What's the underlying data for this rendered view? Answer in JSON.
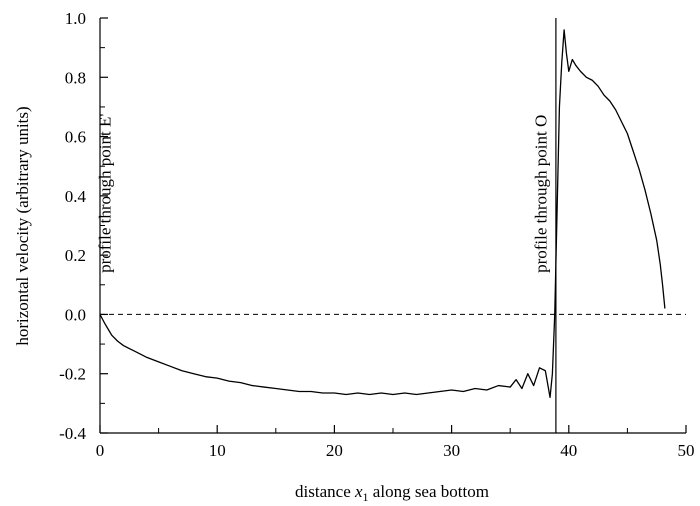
{
  "chart_data": {
    "type": "line",
    "title": "",
    "xlabel": {
      "prefix": "distance ",
      "var": "x",
      "sub": "1",
      "suffix": " along sea bottom"
    },
    "ylabel": "horizontal velocity (arbitrary units)",
    "xlim": [
      0,
      50
    ],
    "ylim": [
      -0.4,
      1.0
    ],
    "xticks": [
      0,
      10,
      20,
      30,
      40,
      50
    ],
    "xtick_labels": [
      "0",
      "10",
      "20",
      "30",
      "40",
      "50"
    ],
    "yticks": [
      -0.4,
      -0.2,
      0.0,
      0.2,
      0.4,
      0.6,
      0.8,
      1.0
    ],
    "ytick_labels": [
      "-0.4",
      "-0.2",
      "0.0",
      "0.2",
      "0.4",
      "0.6",
      "0.8",
      "1.0"
    ],
    "grid": false,
    "reference_line": {
      "y": 0.0,
      "style": "dashed"
    },
    "vertical_line": {
      "x": 38.9
    },
    "annotations": [
      {
        "text": "profile through point E'",
        "x": 0.9,
        "y": 0.14
      },
      {
        "text": "profile through point O",
        "x": 38.1,
        "y": 0.14
      }
    ],
    "series": [
      {
        "x": [
          0.0,
          0.2,
          0.4,
          0.7,
          1.0,
          1.5,
          2.0,
          2.5,
          3.0,
          3.5,
          4.0,
          5.0,
          6.0,
          7.0,
          8.0,
          9.0,
          10.0,
          11.0,
          12.0,
          13.0,
          14.0,
          15.0,
          16.0,
          17.0,
          18.0,
          19.0,
          20.0,
          21.0,
          22.0,
          23.0,
          24.0,
          25.0,
          26.0,
          27.0,
          28.0,
          29.0,
          30.0,
          31.0,
          32.0,
          33.0,
          34.0,
          35.0,
          35.5,
          36.0,
          36.5,
          37.0,
          37.5,
          38.0,
          38.4,
          38.6,
          38.8,
          39.0,
          39.2,
          39.4,
          39.6,
          39.8,
          40.0,
          40.3,
          40.6,
          41.0,
          41.5,
          42.0,
          42.5,
          43.0,
          43.5,
          44.0,
          44.5,
          45.0,
          45.5,
          46.0,
          46.5,
          47.0,
          47.5,
          47.8,
          48.0,
          48.2
        ],
        "y": [
          0.0,
          -0.015,
          -0.03,
          -0.05,
          -0.07,
          -0.09,
          -0.105,
          -0.115,
          -0.125,
          -0.135,
          -0.145,
          -0.16,
          -0.175,
          -0.19,
          -0.2,
          -0.21,
          -0.215,
          -0.225,
          -0.23,
          -0.24,
          -0.245,
          -0.25,
          -0.255,
          -0.26,
          -0.26,
          -0.265,
          -0.265,
          -0.27,
          -0.265,
          -0.27,
          -0.265,
          -0.27,
          -0.265,
          -0.27,
          -0.265,
          -0.26,
          -0.255,
          -0.26,
          -0.25,
          -0.255,
          -0.24,
          -0.245,
          -0.22,
          -0.25,
          -0.2,
          -0.24,
          -0.18,
          -0.19,
          -0.28,
          -0.2,
          0.0,
          0.35,
          0.7,
          0.85,
          0.96,
          0.88,
          0.82,
          0.86,
          0.84,
          0.82,
          0.8,
          0.79,
          0.77,
          0.74,
          0.72,
          0.69,
          0.65,
          0.61,
          0.55,
          0.49,
          0.42,
          0.34,
          0.25,
          0.17,
          0.1,
          0.02
        ]
      }
    ]
  }
}
